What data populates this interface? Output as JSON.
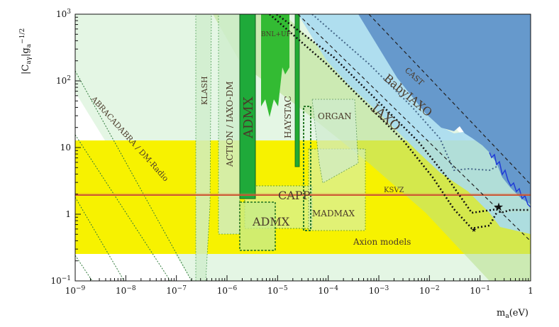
{
  "chart_data": {
    "type": "area",
    "xlabel": "m_a(eV)",
    "ylabel": "|C_aγ|g_a^-1/2",
    "xscale": "log",
    "yscale": "log",
    "xlim": [
      1e-09,
      1
    ],
    "ylim": [
      0.1,
      1000
    ],
    "grid": false,
    "x_ticks": [
      "10^-9",
      "10^-8",
      "10^-7",
      "10^-6",
      "10^-5",
      "10^-4",
      "10^-3",
      "10^-2",
      "10^-1",
      "1"
    ],
    "y_ticks": [
      "10^-1",
      "1",
      "10",
      "10^2",
      "10^3"
    ],
    "colors": {
      "cast": "#6699cc",
      "babyiaxo": "#a8dcef",
      "axion_band": "#f7f200",
      "admx": "#1faa3a",
      "bnl_uf": "#33bb33",
      "ksvz": "#cc5533",
      "haloscope_region": "#e3f6e3",
      "projection_region": "#d6f2c8"
    },
    "regions": [
      {
        "name": "CAST",
        "label": "CAST"
      },
      {
        "name": "BabyIAXO",
        "label": "BabyIAXO"
      },
      {
        "name": "IAXO",
        "label": "IAXO"
      },
      {
        "name": "ADMX",
        "label": "ADMX",
        "x_range": [
          1.9e-06,
          3.4e-06
        ],
        "y_range": [
          1.8,
          1000
        ]
      },
      {
        "name": "ADMX projection",
        "label": "ADMX",
        "x_range": [
          1.4e-06,
          2e-05
        ],
        "y_range": [
          0.45,
          1.4
        ]
      },
      {
        "name": "BNL+UF",
        "label": "BNL+UF",
        "x_range": [
          4.5e-06,
          1.2e-05
        ],
        "y_range": [
          50,
          1000
        ]
      },
      {
        "name": "HAYSTAC",
        "label": "HAYSTAC",
        "x_range": [
          2.3e-05,
          2.5e-05
        ],
        "y_range": [
          5,
          1000
        ]
      },
      {
        "name": "ORGAN",
        "label": "ORGAN",
        "x_range": [
          6e-05,
          0.0002
        ],
        "y_range": [
          3,
          60
        ]
      },
      {
        "name": "KLASH",
        "label": "KLASH",
        "x_range": [
          2.5e-07,
          5e-07
        ],
        "y_range": [
          0.1,
          500
        ]
      },
      {
        "name": "ACTION / IAXO-DM",
        "label": "ACTION / IAXO-DM",
        "x_range": [
          8e-07,
          1.8e-06
        ],
        "y_range": [
          0.6,
          700
        ]
      },
      {
        "name": "ABRACADABRA / DM-Radio",
        "label": "ABRACADABRA / DM-Radio"
      },
      {
        "name": "CAPP",
        "label": "CAPP",
        "x_range": [
          1.5e-06,
          2.5e-05
        ],
        "y_range": [
          1,
          3
        ]
      },
      {
        "name": "MADMAX",
        "label": "MADMAX",
        "x_range": [
          3e-05,
          0.0004
        ],
        "y_range": [
          0.65,
          3
        ]
      },
      {
        "name": "Axion models",
        "label": "Axion models",
        "y_range": [
          0.27,
          13
        ]
      }
    ],
    "lines": [
      {
        "name": "KSVZ",
        "label": "KSVZ",
        "y": 1.92
      }
    ]
  }
}
